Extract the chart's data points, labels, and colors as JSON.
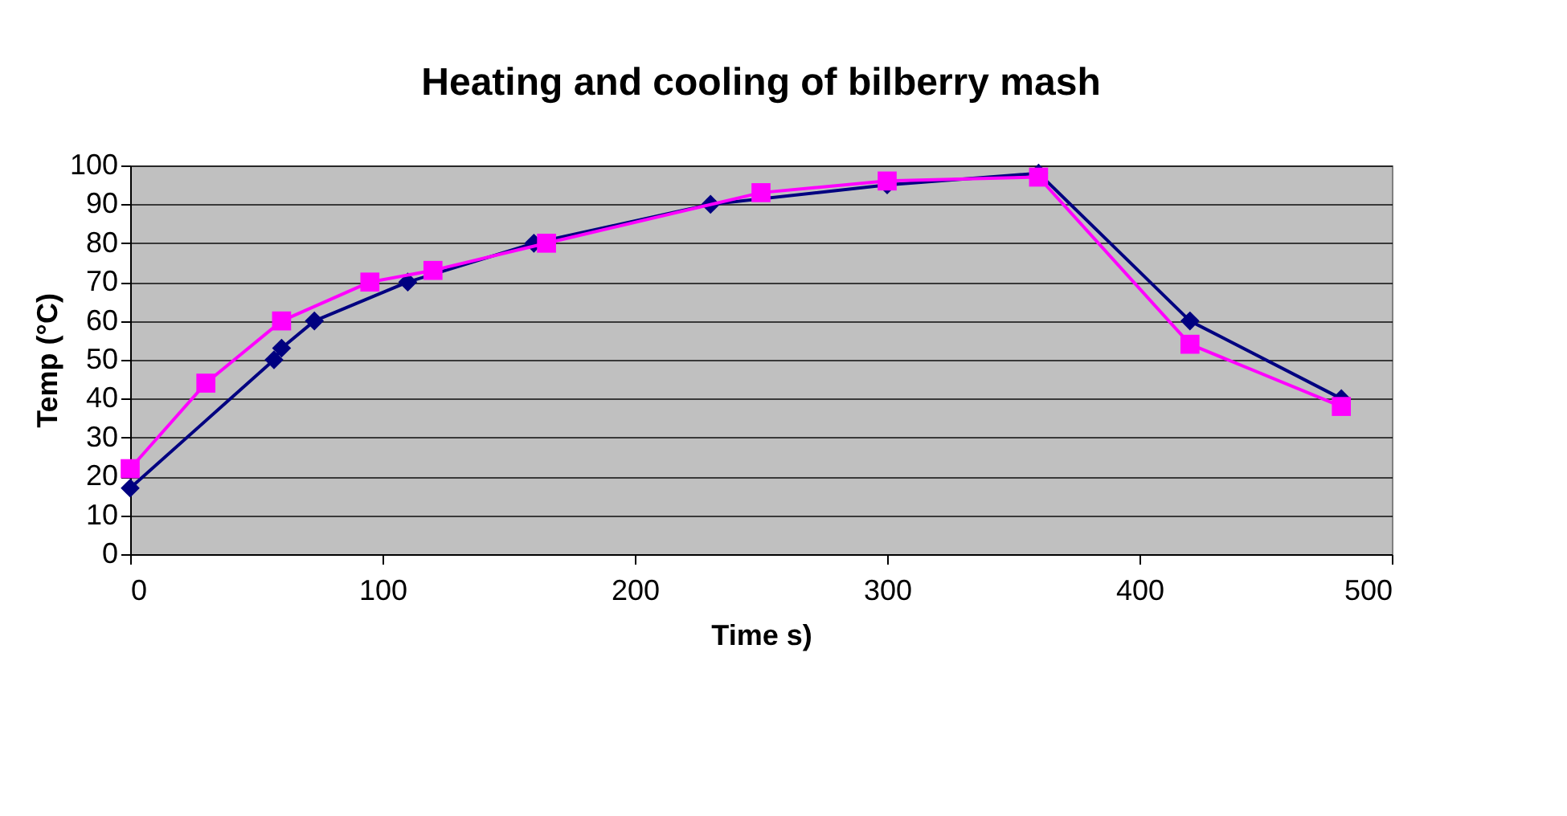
{
  "chart_data": {
    "type": "line",
    "title": "Heating and cooling of bilberry mash",
    "xlabel": "Time s)",
    "ylabel": "Temp (°C)",
    "xlim": [
      0,
      500
    ],
    "xticks": [
      0,
      100,
      200,
      300,
      400,
      500
    ],
    "ylim": [
      0,
      100
    ],
    "yticks": [
      0,
      10,
      20,
      30,
      40,
      50,
      60,
      70,
      80,
      90,
      100
    ],
    "grid": "y",
    "series": [
      {
        "color": "#000080",
        "marker": "diamond",
        "x": [
          0,
          57,
          60,
          73,
          110,
          160,
          230,
          300,
          360,
          420,
          480
        ],
        "values": [
          17,
          50,
          53,
          60,
          70,
          80,
          90,
          95,
          98,
          60,
          40
        ]
      },
      {
        "color": "#ff00ff",
        "marker": "square",
        "x": [
          0,
          30,
          60,
          95,
          120,
          165,
          250,
          300,
          360,
          420,
          480
        ],
        "values": [
          22,
          44,
          60,
          70,
          73,
          80,
          93,
          96,
          97,
          54,
          38
        ]
      }
    ]
  }
}
